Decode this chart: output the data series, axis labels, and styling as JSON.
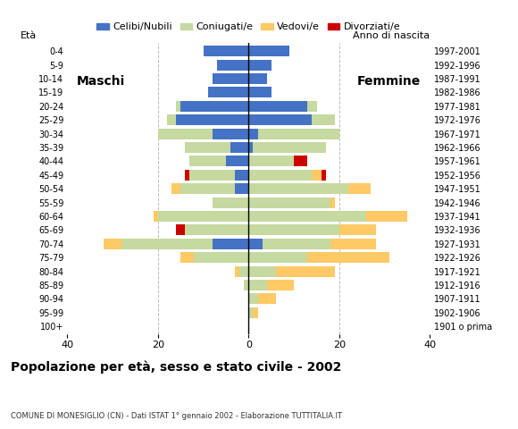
{
  "age_groups": [
    "100+",
    "95-99",
    "90-94",
    "85-89",
    "80-84",
    "75-79",
    "70-74",
    "65-69",
    "60-64",
    "55-59",
    "50-54",
    "45-49",
    "40-44",
    "35-39",
    "30-34",
    "25-29",
    "20-24",
    "15-19",
    "10-14",
    "5-9",
    "0-4"
  ],
  "birth_years": [
    "1901 o prima",
    "1902-1906",
    "1907-1911",
    "1912-1916",
    "1917-1921",
    "1922-1926",
    "1927-1931",
    "1932-1936",
    "1937-1941",
    "1942-1946",
    "1947-1951",
    "1952-1956",
    "1957-1961",
    "1962-1966",
    "1967-1971",
    "1972-1976",
    "1977-1981",
    "1982-1986",
    "1987-1991",
    "1992-1996",
    "1997-2001"
  ],
  "males": {
    "celibi": [
      0,
      0,
      0,
      0,
      0,
      0,
      8,
      0,
      0,
      0,
      3,
      3,
      5,
      4,
      8,
      16,
      15,
      9,
      8,
      7,
      10
    ],
    "coniugati": [
      0,
      0,
      0,
      1,
      2,
      12,
      20,
      14,
      20,
      8,
      12,
      10,
      8,
      10,
      12,
      2,
      1,
      0,
      0,
      0,
      0
    ],
    "vedovi": [
      0,
      0,
      0,
      0,
      1,
      3,
      4,
      0,
      1,
      0,
      2,
      0,
      0,
      0,
      0,
      0,
      0,
      0,
      0,
      0,
      0
    ],
    "divorziati": [
      0,
      0,
      0,
      0,
      0,
      0,
      0,
      2,
      0,
      0,
      0,
      1,
      0,
      0,
      0,
      0,
      0,
      0,
      0,
      0,
      0
    ]
  },
  "females": {
    "nubili": [
      0,
      0,
      0,
      0,
      0,
      0,
      3,
      0,
      0,
      0,
      0,
      0,
      0,
      1,
      2,
      14,
      13,
      5,
      4,
      5,
      9
    ],
    "coniugate": [
      0,
      1,
      2,
      4,
      6,
      13,
      15,
      20,
      26,
      18,
      22,
      14,
      10,
      16,
      18,
      5,
      2,
      0,
      0,
      0,
      0
    ],
    "vedove": [
      0,
      1,
      4,
      6,
      13,
      18,
      10,
      8,
      9,
      1,
      5,
      2,
      0,
      0,
      0,
      0,
      0,
      0,
      0,
      0,
      0
    ],
    "divorziate": [
      0,
      0,
      0,
      0,
      0,
      0,
      0,
      0,
      0,
      0,
      0,
      1,
      3,
      0,
      0,
      0,
      0,
      0,
      0,
      0,
      0
    ]
  },
  "colors": {
    "celibi": "#4472c4",
    "coniugati": "#c5d9a0",
    "vedovi": "#ffc966",
    "divorziati": "#cc0000"
  },
  "title": "Popolazione per età, sesso e stato civile - 2002",
  "subtitle": "COMUNE DI MONESIGLIO (CN) - Dati ISTAT 1° gennaio 2002 - Elaborazione TUTTITALIA.IT",
  "xlabel_left": "Maschi",
  "xlabel_right": "Femmine",
  "ylabel_left": "Età",
  "ylabel_right": "Anno di nascita",
  "xlim": 40,
  "legend_labels": [
    "Celibi/Nubili",
    "Coniugati/e",
    "Vedovi/e",
    "Divorziati/e"
  ],
  "background_color": "#ffffff",
  "plot_bg_color": "#ffffff"
}
